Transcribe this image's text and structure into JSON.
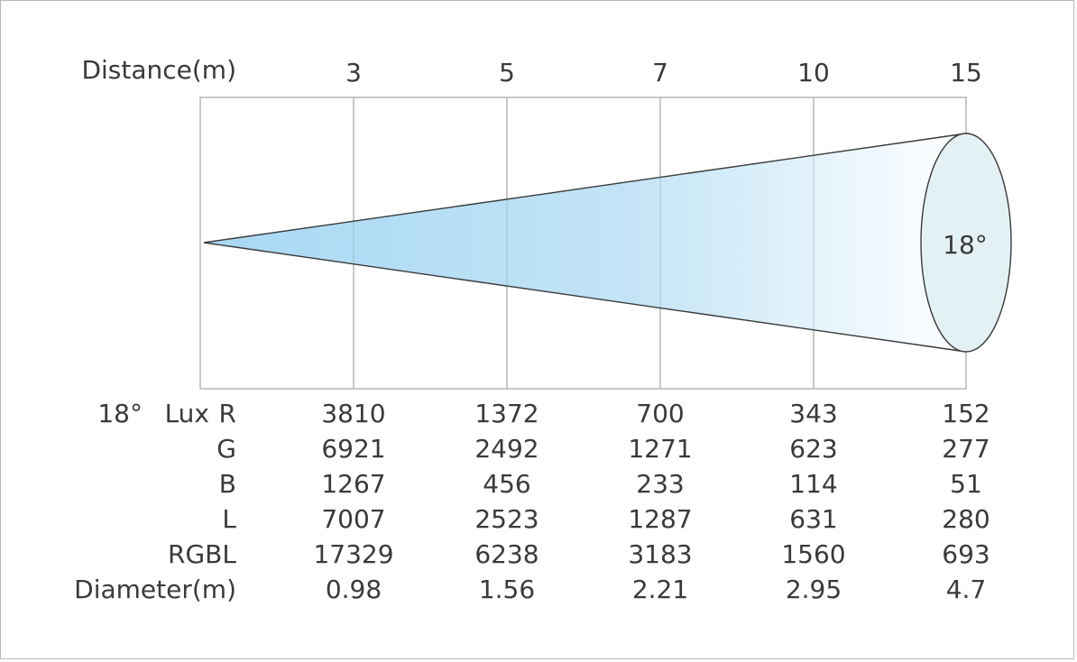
{
  "header_label": "Distance(m)",
  "distances": [
    "3",
    "5",
    "7",
    "10",
    "15"
  ],
  "beam_angle_label": "18°",
  "table": {
    "group_prefix": "18°",
    "group_label": "Lux",
    "rows": [
      {
        "label": "R",
        "values": [
          "3810",
          "1372",
          "700",
          "343",
          "152"
        ]
      },
      {
        "label": "G",
        "values": [
          "6921",
          "2492",
          "1271",
          "623",
          "277"
        ]
      },
      {
        "label": "B",
        "values": [
          "1267",
          "456",
          "233",
          "114",
          "51"
        ]
      },
      {
        "label": "L",
        "values": [
          "7007",
          "2523",
          "1287",
          "631",
          "280"
        ]
      },
      {
        "label": "RGBL",
        "values": [
          "17329",
          "6238",
          "3183",
          "1560",
          "693"
        ]
      },
      {
        "label": "Diameter(m)",
        "values": [
          "0.98",
          "1.56",
          "2.21",
          "2.95",
          "4.7"
        ]
      }
    ]
  },
  "colors": {
    "beam_start": "#a8d8f4",
    "beam_end": "#ffffff",
    "ellipse_fill": "#e4f1f4",
    "grid": "#b5b5b5",
    "outline": "#3a3a3a",
    "text": "#3a3a3a"
  }
}
